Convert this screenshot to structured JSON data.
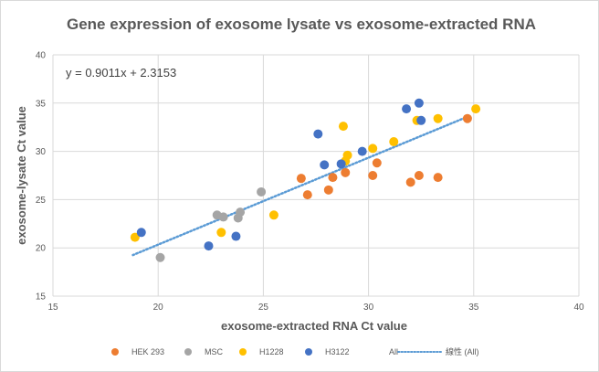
{
  "chart_data": {
    "type": "scatter",
    "title": "Gene expression of exosome lysate vs exosome-extracted RNA",
    "xlabel": "exosome-extracted RNA Ct value",
    "ylabel": "exosome-lysate Ct value",
    "xlim": [
      15,
      40
    ],
    "ylim": [
      15,
      40
    ],
    "xticks": [
      "15",
      "20",
      "25",
      "30",
      "35",
      "40"
    ],
    "yticks": [
      "15",
      "20",
      "25",
      "30",
      "35",
      "40"
    ],
    "grid": true,
    "legend_position": "bottom",
    "annotation": "y = 0.9011x + 2.3153",
    "trendline": {
      "slope": 0.9011,
      "intercept": 2.3153,
      "x_range": [
        18.8,
        34.8
      ],
      "color": "#5b9bd5",
      "legend_label": "線性 (All)"
    },
    "series": [
      {
        "name": "HEK 293",
        "color": "#ed7d31",
        "points": [
          [
            26.8,
            27.2
          ],
          [
            27.1,
            25.5
          ],
          [
            28.1,
            26.0
          ],
          [
            28.3,
            27.3
          ],
          [
            28.9,
            27.8
          ],
          [
            30.2,
            27.5
          ],
          [
            30.4,
            28.8
          ],
          [
            32.0,
            26.8
          ],
          [
            32.4,
            27.5
          ],
          [
            33.3,
            27.3
          ],
          [
            34.7,
            33.4
          ]
        ]
      },
      {
        "name": "MSC",
        "color": "#a5a5a5",
        "points": [
          [
            20.1,
            19.0
          ],
          [
            22.8,
            23.4
          ],
          [
            23.1,
            23.2
          ],
          [
            23.8,
            23.1
          ],
          [
            23.9,
            23.7
          ],
          [
            24.9,
            25.8
          ]
        ]
      },
      {
        "name": "H1228",
        "color": "#ffc000",
        "points": [
          [
            18.9,
            21.1
          ],
          [
            23.0,
            21.6
          ],
          [
            25.5,
            23.4
          ],
          [
            28.8,
            32.6
          ],
          [
            28.9,
            29.0
          ],
          [
            29.0,
            29.6
          ],
          [
            30.2,
            30.3
          ],
          [
            31.2,
            31.0
          ],
          [
            32.3,
            33.2
          ],
          [
            33.3,
            33.4
          ],
          [
            35.1,
            34.4
          ]
        ]
      },
      {
        "name": "H3122",
        "color": "#4472c4",
        "points": [
          [
            19.2,
            21.6
          ],
          [
            22.4,
            20.2
          ],
          [
            23.7,
            21.2
          ],
          [
            27.6,
            31.8
          ],
          [
            27.9,
            28.6
          ],
          [
            28.7,
            28.7
          ],
          [
            29.7,
            30.0
          ],
          [
            31.8,
            34.4
          ],
          [
            32.4,
            35.0
          ],
          [
            32.5,
            33.2
          ]
        ]
      }
    ],
    "legend": [
      {
        "label": "HEK 293",
        "kind": "marker",
        "color": "#ed7d31"
      },
      {
        "label": "MSC",
        "kind": "marker",
        "color": "#a5a5a5"
      },
      {
        "label": "H1228",
        "kind": "marker",
        "color": "#ffc000"
      },
      {
        "label": "H3122",
        "kind": "marker",
        "color": "#4472c4"
      },
      {
        "label": "All",
        "kind": "none",
        "color": ""
      },
      {
        "label": "線性 (All)",
        "kind": "dotted-line",
        "color": "#5b9bd5"
      }
    ]
  }
}
